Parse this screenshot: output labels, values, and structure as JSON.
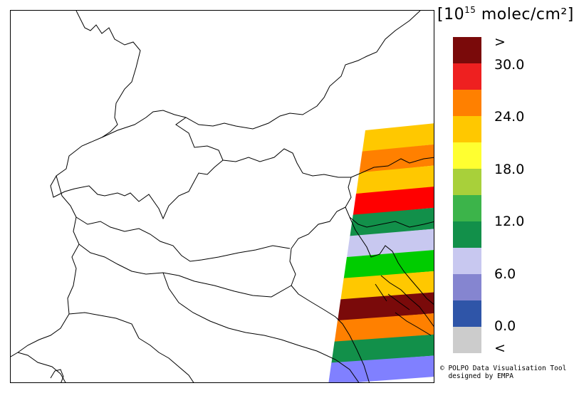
{
  "legend": {
    "unit_prefix": "[10",
    "unit_exponent": "15",
    "unit_suffix": " molec/cm²]",
    "bins": [
      {
        "color": "#7a0a0a"
      },
      {
        "color": "#ee2020"
      },
      {
        "color": "#ff8000"
      },
      {
        "color": "#ffc800"
      },
      {
        "color": "#ffff30"
      },
      {
        "color": "#a8d03a"
      },
      {
        "color": "#3cb44a"
      },
      {
        "color": "#12904a"
      },
      {
        "color": "#c8c8f0"
      },
      {
        "color": "#8585d0"
      },
      {
        "color": "#2f55a8"
      },
      {
        "color": "#cccccc"
      }
    ],
    "tick_labels": [
      ">",
      "30.0",
      "24.0",
      "18.0",
      "12.0",
      "6.0",
      "0.0",
      "<"
    ]
  },
  "swath": {
    "stripe_colors": [
      "#ffc800",
      "#ff8000",
      "#ffc800",
      "#ff0000",
      "#12904a",
      "#c8c8f0",
      "#00cc00",
      "#ffc800",
      "#7a0a0a",
      "#ff8000",
      "#12904a",
      "#8080ff"
    ]
  },
  "credit": {
    "line1": "© POLPO Data Visualisation Tool",
    "line2": "  designed by EMPA"
  }
}
